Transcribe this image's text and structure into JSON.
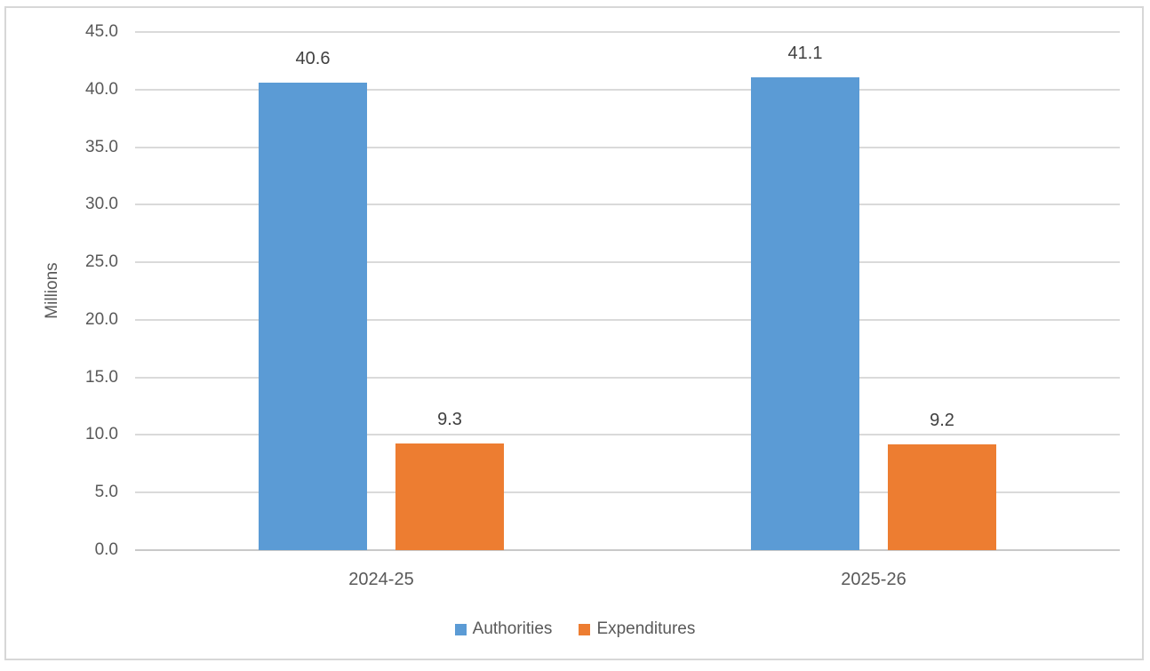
{
  "chart_data": {
    "type": "bar",
    "title": "",
    "categories": [
      "2024-25",
      "2025-26"
    ],
    "series": [
      {
        "name": "Authorities",
        "color": "#5B9BD5",
        "values": [
          40.6,
          41.1
        ],
        "labels": [
          "40.6",
          "41.1"
        ]
      },
      {
        "name": "Expenditures",
        "color": "#ED7D31",
        "values": [
          9.3,
          9.2
        ],
        "labels": [
          "9.3",
          "9.2"
        ]
      }
    ],
    "xlabel": "",
    "ylabel": "Millions",
    "ylim": [
      0,
      45
    ],
    "ytick_step": 5,
    "ytick_labels": [
      "45.0",
      "40.0",
      "35.0",
      "30.0",
      "25.0",
      "20.0",
      "15.0",
      "10.0",
      "5.0",
      "0.0"
    ],
    "grid": true,
    "legend_position": "bottom"
  }
}
